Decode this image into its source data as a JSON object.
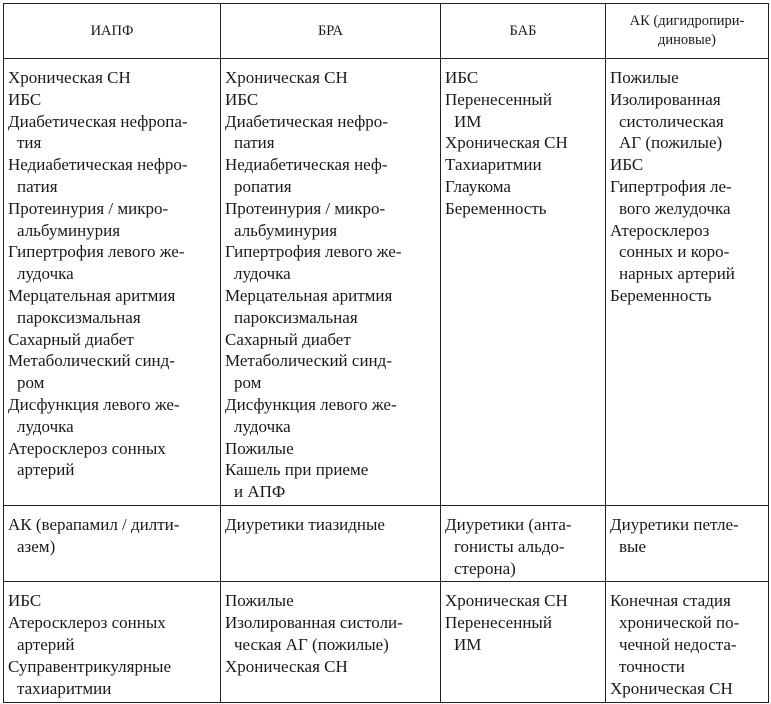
{
  "headers": [
    "ИАПФ",
    "БРА",
    "БАБ",
    "АК (дигидропири-|диновые)"
  ],
  "rows": [
    [
      [
        [
          "Хроническая СН"
        ],
        [
          "ИБС"
        ],
        [
          "Диабетическая нефропа-",
          "тия"
        ],
        [
          "Недиабетическая нефро-",
          "патия"
        ],
        [
          "Протеинурия / микро-",
          "альбуминурия"
        ],
        [
          "Гипертрофия левого же-",
          "лудочка"
        ],
        [
          "Мерцательная аритмия",
          "пароксизмальная"
        ],
        [
          "Сахарный диабет"
        ],
        [
          "Метаболический синд-",
          "ром"
        ],
        [
          "Дисфункция левого же-",
          "лудочка"
        ],
        [
          "Атеросклероз сонных",
          "артерий"
        ]
      ],
      [
        [
          "Хроническая СН"
        ],
        [
          "ИБС"
        ],
        [
          "Диабетическая нефро-",
          "патия"
        ],
        [
          "Недиабетическая неф-",
          "ропатия"
        ],
        [
          "Протеинурия / микро-",
          "альбуминурия"
        ],
        [
          "Гипертрофия левого же-",
          "лудочка"
        ],
        [
          "Мерцательная аритмия",
          "пароксизмальная"
        ],
        [
          "Сахарный диабет"
        ],
        [
          "Метаболический синд-",
          "ром"
        ],
        [
          "Дисфункция левого же-",
          "лудочка"
        ],
        [
          "Пожилые"
        ],
        [
          "Кашель при приеме",
          "и АПФ"
        ]
      ],
      [
        [
          "ИБС"
        ],
        [
          "Перенесенный",
          "ИМ"
        ],
        [
          "Хроническая СН"
        ],
        [
          "Тахиаритмии"
        ],
        [
          "Глаукома"
        ],
        [
          "Беременность"
        ]
      ],
      [
        [
          "Пожилые"
        ],
        [
          "Изолированная",
          "систолическая",
          "АГ (пожилые)"
        ],
        [
          "ИБС"
        ],
        [
          "Гипертрофия ле-",
          "вого желудочка"
        ],
        [
          "Атеросклероз",
          "сонных и коро-",
          "нарных артерий"
        ],
        [
          "Беременность"
        ]
      ]
    ],
    [
      [
        [
          "АК (верапамил / дилти-",
          "азем)"
        ]
      ],
      [
        [
          "Диуретики тиазидные"
        ]
      ],
      [
        [
          "Диуретики (анта-",
          "гонисты альдо-",
          "стерона)"
        ]
      ],
      [
        [
          "Диуретики петле-",
          "вые"
        ]
      ]
    ],
    [
      [
        [
          "ИБС"
        ],
        [
          "Атеросклероз сонных",
          "артерий"
        ],
        [
          "Суправентрикулярные",
          "тахиаритмии"
        ]
      ],
      [
        [
          "Пожилые"
        ],
        [
          "Изолированная систоли-",
          "ческая АГ (пожилые)"
        ],
        [
          "Хроническая СН"
        ]
      ],
      [
        [
          "Хроническая СН"
        ],
        [
          "Перенесенный",
          "ИМ"
        ]
      ],
      [
        [
          "Конечная стадия",
          "хронической по-",
          "чечной недоста-",
          "точности"
        ],
        [
          "Хроническая СН"
        ]
      ]
    ]
  ]
}
